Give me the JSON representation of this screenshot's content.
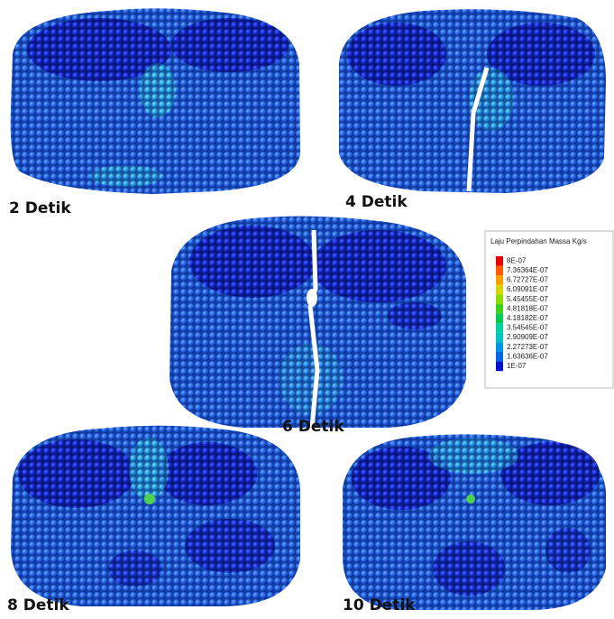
{
  "panels": [
    {
      "label": "2 Detik"
    },
    {
      "label": "4 Detik"
    },
    {
      "label": "6 Detik"
    },
    {
      "label": "8 Detik"
    },
    {
      "label": "10 Detik"
    }
  ],
  "legend": {
    "title": "Laju Perpindahan Massa Kg/s",
    "entries": [
      {
        "label": "8E-07",
        "color": "#e60000"
      },
      {
        "label": "7.36364E-07",
        "color": "#ff5a00"
      },
      {
        "label": "6.72727E-07",
        "color": "#ff9f00"
      },
      {
        "label": "6.09091E-07",
        "color": "#d6d600"
      },
      {
        "label": "5.45455E-07",
        "color": "#8fdc00"
      },
      {
        "label": "4.81818E-07",
        "color": "#3cd21e"
      },
      {
        "label": "4.18182E-07",
        "color": "#00c850"
      },
      {
        "label": "3.54545E-07",
        "color": "#00d2a0"
      },
      {
        "label": "2.90909E-07",
        "color": "#00c3c8"
      },
      {
        "label": "2.27273E-07",
        "color": "#0096e6"
      },
      {
        "label": "1.63636E-07",
        "color": "#0064e6"
      },
      {
        "label": "1E-07",
        "color": "#0010d2"
      }
    ]
  }
}
